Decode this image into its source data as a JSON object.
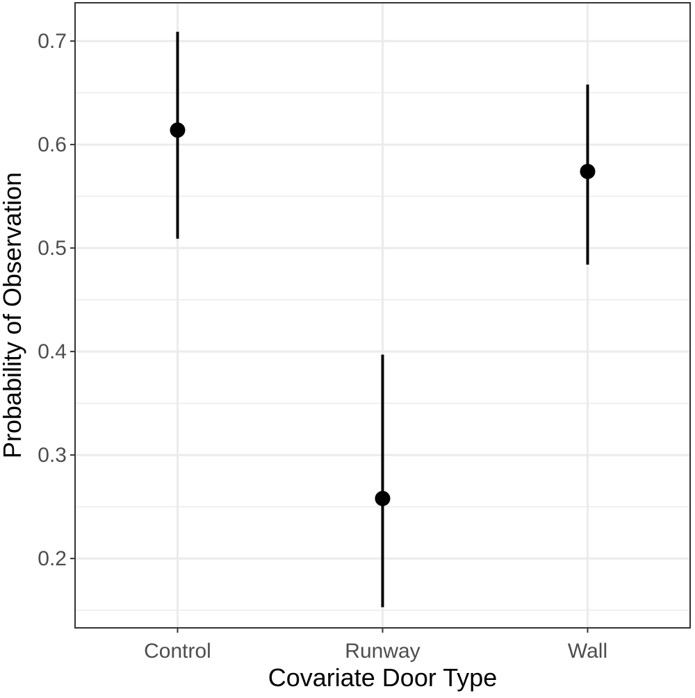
{
  "chart_data": {
    "type": "scatter",
    "subtype": "point-range",
    "title": "",
    "xlabel": "Covariate Door Type",
    "ylabel": "Probability of Observation",
    "categories": [
      "Control",
      "Runway",
      "Wall"
    ],
    "series": [
      {
        "values": [
          0.614,
          0.258,
          0.574
        ],
        "lower": [
          0.509,
          0.153,
          0.484
        ],
        "upper": [
          0.709,
          0.397,
          0.658
        ]
      }
    ],
    "yticks": [
      0.2,
      0.3,
      0.4,
      0.5,
      0.6,
      0.7
    ],
    "ytick_labels": [
      "0.2",
      "0.3",
      "0.4",
      "0.5",
      "0.6",
      "0.7"
    ],
    "ylim": [
      0.133,
      0.737
    ],
    "grid": true,
    "legend": "none",
    "colors": {
      "point": "#000000",
      "errorbar": "#000000",
      "grid": "#ebebeb",
      "panel_border": "#333333",
      "tick_label": "#4d4d4d"
    }
  }
}
